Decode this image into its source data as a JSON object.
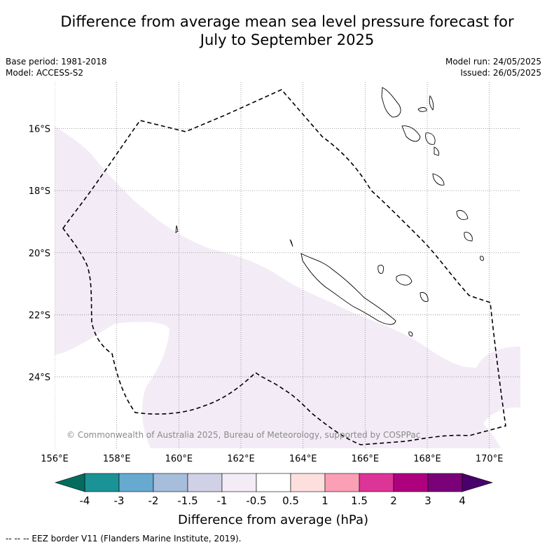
{
  "title_line1": "Difference from average mean sea level pressure forecast for",
  "title_line2": "July to September 2025",
  "meta": {
    "base_period": "Base period: 1981-2018",
    "model": "Model: ACCESS-S2",
    "model_run": "Model run: 24/05/2025",
    "issued": "Issued: 26/05/2025"
  },
  "copyright": "© Commonwealth of Australia 2025, Bureau of Meteorology, supported by COSPPac",
  "footer": "--  --  -- EEZ border V11 (Flanders Marine Institute, 2019).",
  "map": {
    "lon_range": [
      156,
      171
    ],
    "lat_range": [
      -26.3,
      -14.5
    ],
    "lon_ticks": [
      {
        "value": 156,
        "label": "156°E"
      },
      {
        "value": 158,
        "label": "158°E"
      },
      {
        "value": 160,
        "label": "160°E"
      },
      {
        "value": 162,
        "label": "162°E"
      },
      {
        "value": 164,
        "label": "164°E"
      },
      {
        "value": 166,
        "label": "166°E"
      },
      {
        "value": 168,
        "label": "168°E"
      },
      {
        "value": 170,
        "label": "170°E"
      }
    ],
    "lat_ticks": [
      {
        "value": -16,
        "label": "16°S"
      },
      {
        "value": -18,
        "label": "18°S"
      },
      {
        "value": -20,
        "label": "20°S"
      },
      {
        "value": -22,
        "label": "22°S"
      },
      {
        "value": -24,
        "label": "24°S"
      }
    ],
    "gridlines": true,
    "anomaly_fill_color": "#f3ecf6",
    "eez_border_style": "dashed black"
  },
  "colorbar": {
    "label": "Difference from average (hPa)",
    "tick_labels": [
      "-4",
      "-3",
      "-2",
      "-1.5",
      "-1",
      "-0.5",
      "0.5",
      "1",
      "1.5",
      "2",
      "3",
      "4"
    ],
    "colors": [
      "#1a9396",
      "#67a9cf",
      "#a6bddb",
      "#d0d1e6",
      "#f3ecf6",
      "#ffffff",
      "#fde0dd",
      "#fa9fb5",
      "#dd3497",
      "#ae017e",
      "#7a0177"
    ],
    "under_color": "#036c5f",
    "over_color": "#49006a"
  }
}
